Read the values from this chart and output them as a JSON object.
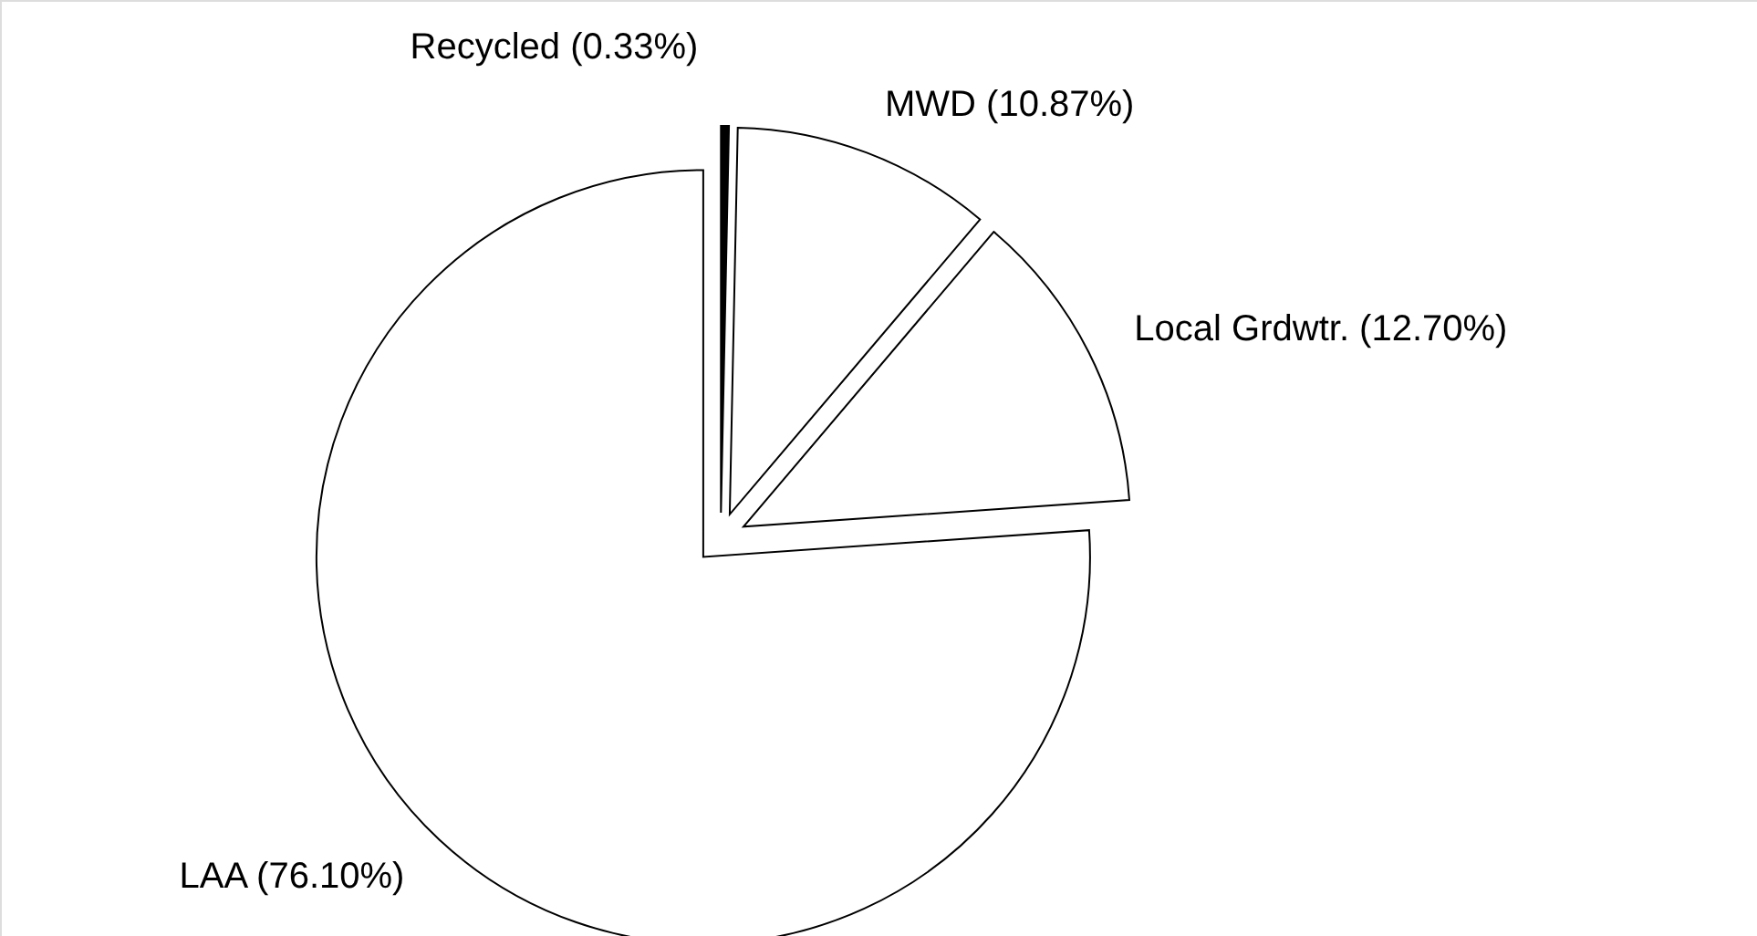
{
  "chart_data": {
    "type": "pie",
    "categories": [
      "Recycled",
      "MWD",
      "Local Grdwtr.",
      "LAA"
    ],
    "values": [
      0.33,
      10.87,
      12.7,
      76.1
    ],
    "colors": [
      "#000000",
      "#ffffff",
      "#ffffff",
      "#ffffff"
    ],
    "value_labels": [
      "(0.33%)",
      "(10.87%)",
      "(12.70%)",
      "(76.10%)"
    ]
  }
}
